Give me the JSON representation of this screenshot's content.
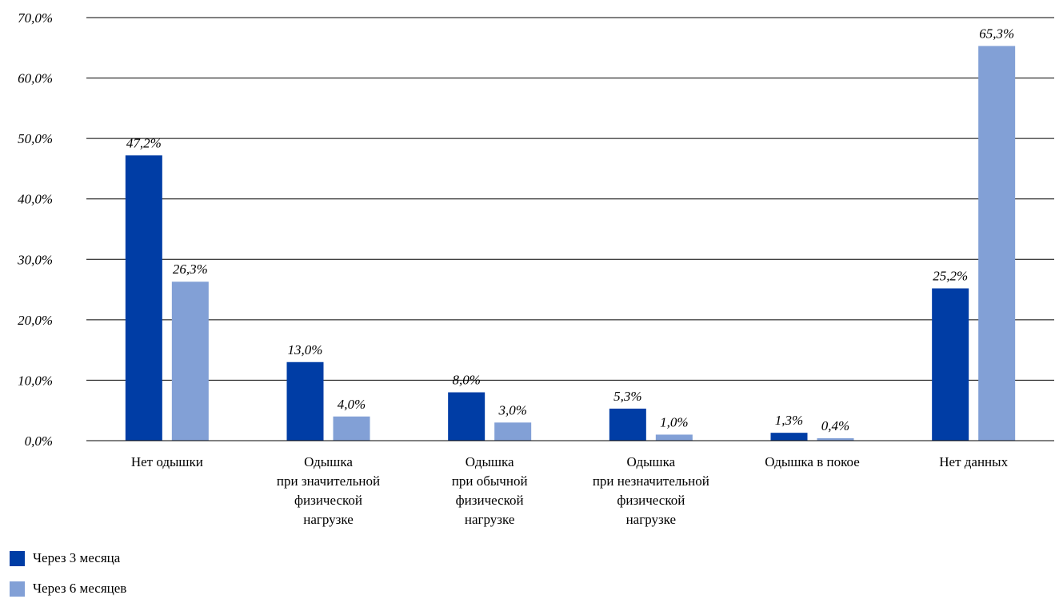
{
  "chart_data": {
    "type": "bar",
    "categories": [
      [
        "Нет одышки"
      ],
      [
        "Одышка",
        "при значительной",
        "физической",
        "нагрузке"
      ],
      [
        "Одышка",
        "при обычной",
        "физической",
        "нагрузке"
      ],
      [
        "Одышка",
        "при незначительной",
        "физической",
        "нагрузке"
      ],
      [
        "Одышка в покое"
      ],
      [
        "Нет данных"
      ]
    ],
    "series": [
      {
        "name": "Через 3 месяца",
        "color": "#003da5",
        "values": [
          47.2,
          13.0,
          8.0,
          5.3,
          1.3,
          25.2
        ],
        "labels": [
          "47,2%",
          "13,0%",
          "8,0%",
          "5,3%",
          "1,3%",
          "25,2%"
        ]
      },
      {
        "name": "Через 6 месяцев",
        "color": "#82a0d6",
        "values": [
          26.3,
          4.0,
          3.0,
          1.0,
          0.4,
          65.3
        ],
        "labels": [
          "26,3%",
          "4,0%",
          "3,0%",
          "1,0%",
          "0,4%",
          "65,3%"
        ]
      }
    ],
    "yticks": [
      {
        "value": 0,
        "label": "0,0%"
      },
      {
        "value": 10,
        "label": "10,0%"
      },
      {
        "value": 20,
        "label": "20,0%"
      },
      {
        "value": 30,
        "label": "30,0%"
      },
      {
        "value": 40,
        "label": "40,0%"
      },
      {
        "value": 50,
        "label": "50,0%"
      },
      {
        "value": 60,
        "label": "60,0%"
      },
      {
        "value": 70,
        "label": "70,0%"
      }
    ],
    "ylim": [
      0,
      70
    ],
    "grid": true,
    "legend_position": "bottom-left",
    "title": "",
    "xlabel": "",
    "ylabel": ""
  }
}
